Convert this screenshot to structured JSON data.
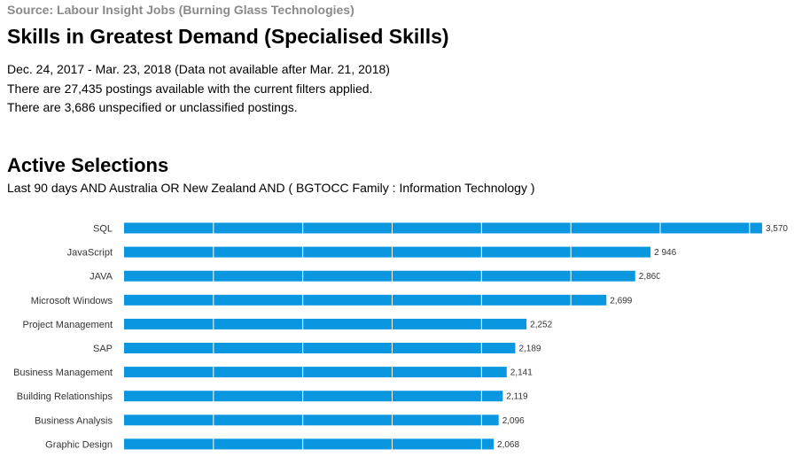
{
  "header": {
    "source": "Source: Labour Insight Jobs (Burning Glass Technologies)",
    "title": "Skills in Greatest Demand (Specialised Skills)",
    "date_range": "Dec.  24, 2017  - Mar.  23, 2018  (Data not available after  Mar.  21, 2018)",
    "postings_line": "There are 27,435 postings available with the current filters applied.",
    "unspecified_line": "There are 3,686 unspecified or unclassified postings."
  },
  "selections": {
    "title": "Active Selections",
    "text": "Last 90 days AND Australia OR New Zealand AND ( BGTOCC Family : Information Technology )"
  },
  "colors": {
    "bar": "#0b96e0",
    "gridline": "#ffffff"
  },
  "chart_data": {
    "type": "bar",
    "orientation": "horizontal",
    "categories": [
      "SQL",
      "JavaScript",
      "JAVA",
      "Microsoft Windows",
      "Project Management",
      "SAP",
      "Business Management",
      "Building Relationships",
      "Business Analysis",
      "Graphic Design"
    ],
    "values": [
      3570,
      2946,
      2860,
      2699,
      2252,
      2189,
      2141,
      2119,
      2096,
      2068
    ],
    "value_labels": [
      "3,570",
      "2,946",
      "2,860",
      "2,699",
      "2,252",
      "2,189",
      "2,141",
      "2,119",
      "2,096",
      "2,068"
    ],
    "xlim": [
      0,
      3600
    ],
    "gridlines_at": [
      500,
      1000,
      1500,
      2000,
      2500,
      3000,
      3500
    ],
    "grid": true
  }
}
